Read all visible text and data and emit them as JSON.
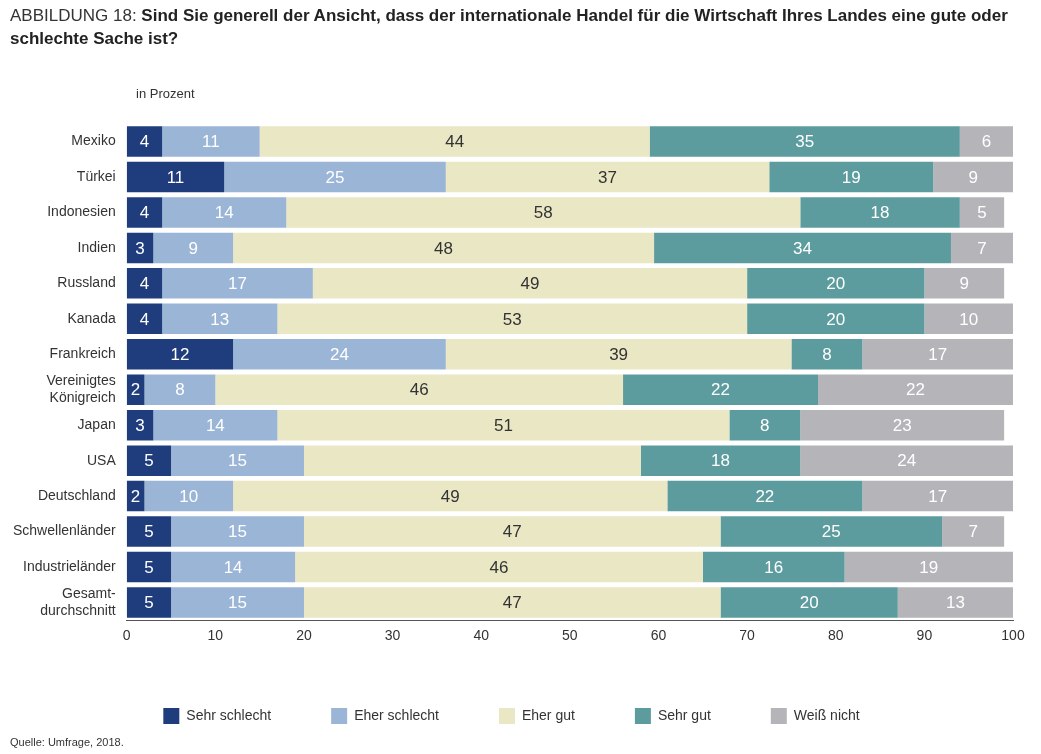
{
  "chart_data": {
    "type": "bar",
    "orientation": "horizontal",
    "stacked": true,
    "title": "ABBILDUNG 18:",
    "subtitle": "Sind Sie generell der Ansicht, dass der internationale Handel für die Wirtschaft Ihres Landes eine gute oder schlechte Sache ist?",
    "xlabel": "in Prozent",
    "categories": [
      "Mexiko",
      "Türkei",
      "Indonesien",
      "Indien",
      "Russland",
      "Kanada",
      "Frankreich",
      "Vereinigtes\nKönigreich",
      "Japan",
      "USA",
      "Deutschland",
      "Schwellenländer",
      "Industrieländer",
      "Gesamt-\ndurchschnitt"
    ],
    "series": [
      {
        "name": "Sehr schlecht",
        "color": "#1f3c7c",
        "values": [
          4,
          11,
          4,
          3,
          4,
          4,
          12,
          2,
          3,
          5,
          2,
          5,
          5,
          5
        ],
        "value_labels": [
          "4",
          "11",
          "4",
          "3",
          "4",
          "4",
          "12",
          "2",
          "3",
          "5",
          "2",
          "5",
          "5",
          "5"
        ]
      },
      {
        "name": "Eher schlecht",
        "color": "#9bb5d6",
        "values": [
          11,
          25,
          14,
          9,
          17,
          13,
          24,
          8,
          14,
          15,
          10,
          15,
          14,
          15
        ],
        "value_labels": [
          "11",
          "25",
          "14",
          "9",
          "17",
          "13",
          "24",
          "8",
          "14",
          "15",
          "10",
          "15",
          "14",
          "15"
        ]
      },
      {
        "name": "Eher gut",
        "color": "#e9e7c4",
        "values": [
          44,
          36.5,
          58,
          47.5,
          49,
          53,
          39,
          46,
          51,
          38,
          49,
          47,
          46,
          47
        ],
        "value_labels": [
          "44",
          "37",
          "58",
          "48",
          "49",
          "53",
          "39",
          "46",
          "51",
          null,
          "49",
          "47",
          "46",
          "47"
        ]
      },
      {
        "name": "Sehr gut",
        "color": "#5c9c9e",
        "values": [
          35,
          18.5,
          18,
          33.5,
          20,
          20,
          8,
          22,
          8,
          18,
          22,
          25,
          16,
          20
        ],
        "value_labels": [
          "35",
          "19",
          "18",
          "34",
          "20",
          "20",
          "8",
          "22",
          "8",
          "18",
          "22",
          "25",
          "16",
          "20"
        ]
      },
      {
        "name": "Weiß nicht",
        "color": "#b5b5b9",
        "values": [
          6,
          9,
          5,
          7,
          9,
          10,
          17,
          22,
          23,
          24,
          17,
          7,
          19,
          13
        ],
        "value_labels": [
          "6",
          "9",
          "5",
          "7",
          "9",
          "10",
          "17",
          "22",
          "23",
          "24",
          "17",
          "7",
          "19",
          "13"
        ]
      }
    ],
    "xlim": [
      0,
      100
    ],
    "xticks": [
      0,
      10,
      20,
      30,
      40,
      50,
      60,
      70,
      80,
      90,
      100
    ],
    "grid": false,
    "legend": "bottom",
    "annotations": [
      "Quelle: Umfrage, 2018."
    ]
  }
}
